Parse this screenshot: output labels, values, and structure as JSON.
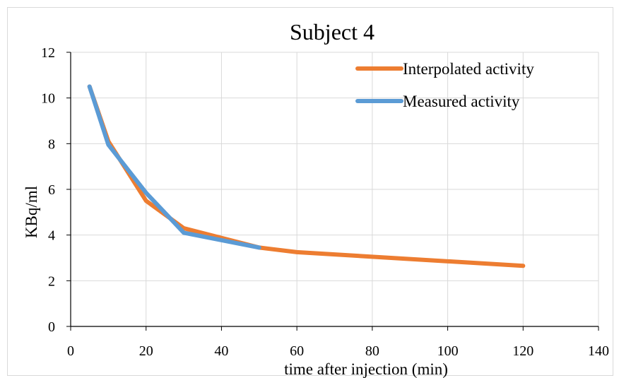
{
  "chart_data": {
    "type": "line",
    "title": "Subject 4",
    "xlabel": "time after injection (min)",
    "ylabel": "KBq/ml",
    "xlim": [
      0,
      140
    ],
    "ylim": [
      0,
      12
    ],
    "x_ticks": [
      0,
      20,
      40,
      60,
      80,
      100,
      120,
      140
    ],
    "y_ticks": [
      0,
      2,
      4,
      6,
      8,
      10,
      12
    ],
    "grid": "vertical and horizontal",
    "legend_position": "top-right",
    "series": [
      {
        "name": "Interpolated activity",
        "color": "#ed7d31",
        "x": [
          5,
          10,
          20,
          30,
          50,
          60,
          120
        ],
        "y": [
          10.5,
          8.1,
          5.5,
          4.3,
          3.45,
          3.25,
          2.65
        ]
      },
      {
        "name": "Measured activity",
        "color": "#5b9bd5",
        "x": [
          5,
          10,
          20,
          30,
          50
        ],
        "y": [
          10.5,
          7.95,
          5.85,
          4.1,
          3.45
        ]
      }
    ]
  }
}
